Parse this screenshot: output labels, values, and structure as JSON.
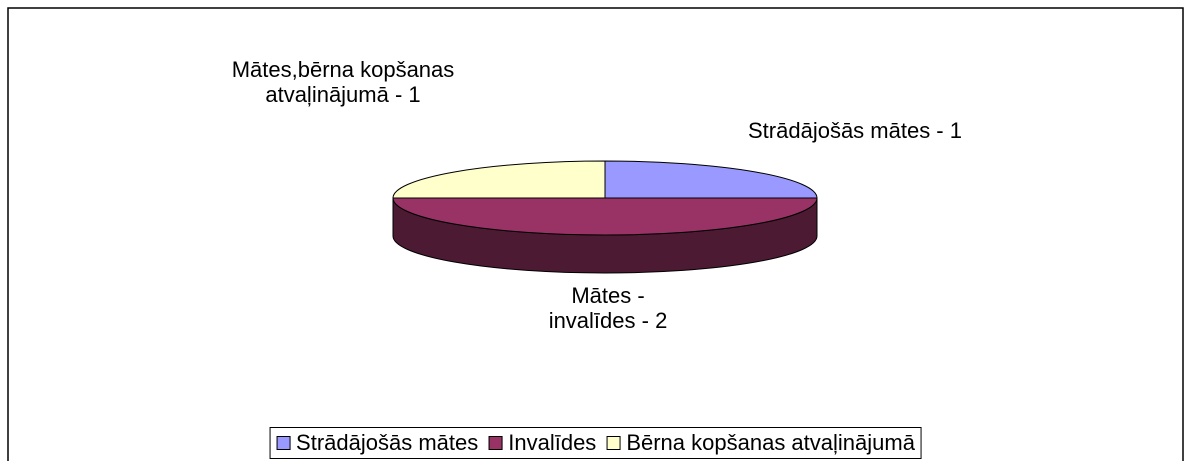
{
  "chart_data": {
    "type": "pie3d",
    "categories": [
      "Strādājošās mātes",
      "Invalīdes",
      "Bērna kopšanas atvaļinājumā"
    ],
    "values": [
      1,
      2,
      1
    ],
    "value_labels": [
      "Strādājošās mātes - 1",
      "Mātes - invalīdes - 2",
      "Mātes,bērna kopšanas atvaļinājumā - 1"
    ],
    "colors": [
      "#9999ff",
      "#993366",
      "#ffffcc"
    ],
    "legend": "bottom"
  }
}
